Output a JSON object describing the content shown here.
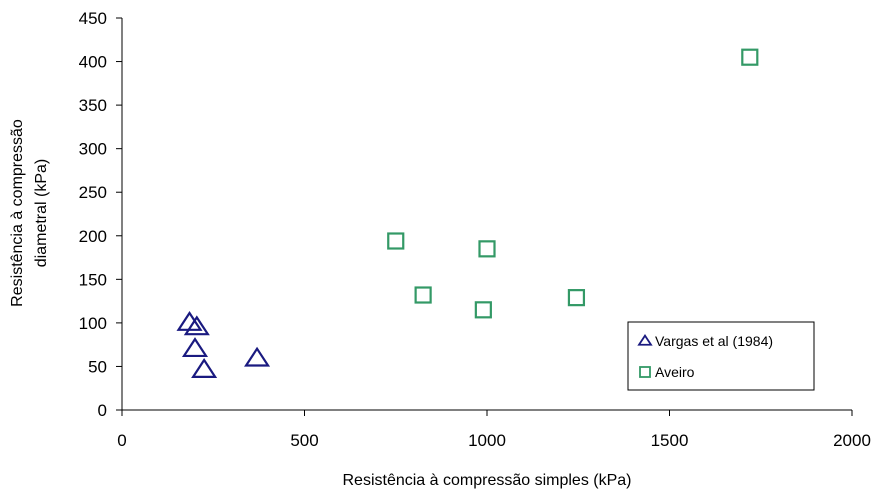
{
  "chart_data": {
    "type": "scatter",
    "xlabel": "Resistência à compressão simples (kPa)",
    "ylabel_lines": [
      "Resistência à compressão",
      "diametral (kPa)"
    ],
    "xlim": [
      0,
      2000
    ],
    "ylim": [
      0,
      450
    ],
    "x_ticks": [
      0,
      500,
      1000,
      1500,
      2000
    ],
    "y_ticks": [
      0,
      50,
      100,
      150,
      200,
      250,
      300,
      350,
      400,
      450
    ],
    "grid": false,
    "legend_position": "bottom-right",
    "series": [
      {
        "name": "Vargas et al (1984)",
        "marker": "triangle",
        "color": "#1a1a80",
        "points": [
          {
            "x": 185,
            "y": 100
          },
          {
            "x": 205,
            "y": 95
          },
          {
            "x": 200,
            "y": 70
          },
          {
            "x": 225,
            "y": 46
          },
          {
            "x": 370,
            "y": 59
          }
        ]
      },
      {
        "name": "Aveiro",
        "marker": "square",
        "color": "#339966",
        "points": [
          {
            "x": 750,
            "y": 194
          },
          {
            "x": 825,
            "y": 132
          },
          {
            "x": 990,
            "y": 115
          },
          {
            "x": 1000,
            "y": 185
          },
          {
            "x": 1245,
            "y": 129
          },
          {
            "x": 1720,
            "y": 405
          }
        ]
      }
    ]
  }
}
